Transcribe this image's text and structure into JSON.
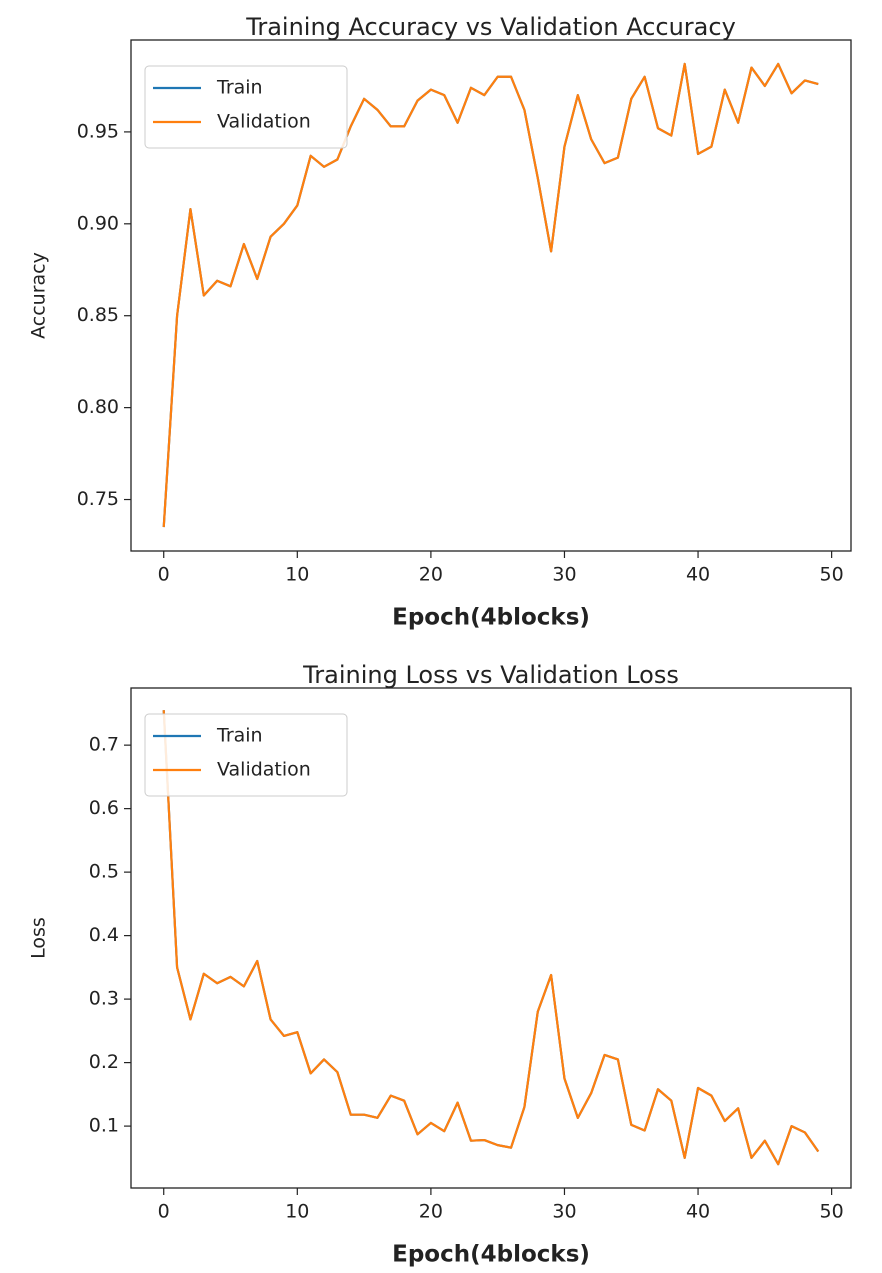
{
  "chart_data": [
    {
      "type": "line",
      "title": "Training Accuracy vs Validation Accuracy",
      "x_label": "Epoch(4blocks)",
      "y_label": "Accuracy",
      "x": [
        0,
        1,
        2,
        3,
        4,
        5,
        6,
        7,
        8,
        9,
        10,
        11,
        12,
        13,
        14,
        15,
        16,
        17,
        18,
        19,
        20,
        21,
        22,
        23,
        24,
        25,
        26,
        27,
        28,
        29,
        30,
        31,
        32,
        33,
        34,
        35,
        36,
        37,
        38,
        39,
        40,
        41,
        42,
        43,
        44,
        45,
        46,
        47,
        48,
        49
      ],
      "series": [
        {
          "name": "Train",
          "color": "#1f77b4",
          "values": [
            0.735,
            0.85,
            0.908,
            0.861,
            0.869,
            0.866,
            0.889,
            0.87,
            0.893,
            0.9,
            0.91,
            0.937,
            0.931,
            0.935,
            0.953,
            0.968,
            0.962,
            0.953,
            0.953,
            0.967,
            0.973,
            0.97,
            0.955,
            0.974,
            0.97,
            0.98,
            0.98,
            0.962,
            0.925,
            0.885,
            0.942,
            0.97,
            0.946,
            0.933,
            0.936,
            0.968,
            0.98,
            0.952,
            0.948,
            0.987,
            0.938,
            0.942,
            0.973,
            0.955,
            0.985,
            0.975,
            0.987,
            0.971,
            0.978,
            0.976
          ]
        },
        {
          "name": "Validation",
          "color": "#ff7f0e",
          "values": [
            0.735,
            0.85,
            0.908,
            0.861,
            0.869,
            0.866,
            0.889,
            0.87,
            0.893,
            0.9,
            0.91,
            0.937,
            0.931,
            0.935,
            0.953,
            0.968,
            0.962,
            0.953,
            0.953,
            0.967,
            0.973,
            0.97,
            0.955,
            0.974,
            0.97,
            0.98,
            0.98,
            0.962,
            0.925,
            0.885,
            0.942,
            0.97,
            0.946,
            0.933,
            0.936,
            0.968,
            0.98,
            0.952,
            0.948,
            0.987,
            0.938,
            0.942,
            0.973,
            0.955,
            0.985,
            0.975,
            0.987,
            0.971,
            0.978,
            0.976
          ]
        }
      ],
      "xlim": [
        -2.45,
        51.45
      ],
      "xticks": [
        0,
        10,
        20,
        30,
        40,
        50
      ],
      "ylim": [
        0.722,
        1.0
      ],
      "yticks": [
        {
          "value": 0.75,
          "label": "0.75"
        },
        {
          "value": 0.8,
          "label": "0.80"
        },
        {
          "value": 0.85,
          "label": "0.85"
        },
        {
          "value": 0.9,
          "label": "0.90"
        },
        {
          "value": 0.95,
          "label": "0.95"
        }
      ],
      "grid": false,
      "legend": "upper left"
    },
    {
      "type": "line",
      "title": "Training Loss vs Validation Loss",
      "x_label": "Epoch(4blocks)",
      "y_label": "Loss",
      "x": [
        0,
        1,
        2,
        3,
        4,
        5,
        6,
        7,
        8,
        9,
        10,
        11,
        12,
        13,
        14,
        15,
        16,
        17,
        18,
        19,
        20,
        21,
        22,
        23,
        24,
        25,
        26,
        27,
        28,
        29,
        30,
        31,
        32,
        33,
        34,
        35,
        36,
        37,
        38,
        39,
        40,
        41,
        42,
        43,
        44,
        45,
        46,
        47,
        48,
        49
      ],
      "series": [
        {
          "name": "Train",
          "color": "#1f77b4",
          "values": [
            0.755,
            0.35,
            0.268,
            0.34,
            0.325,
            0.335,
            0.32,
            0.36,
            0.268,
            0.242,
            0.248,
            0.183,
            0.205,
            0.185,
            0.118,
            0.118,
            0.113,
            0.148,
            0.14,
            0.087,
            0.105,
            0.092,
            0.137,
            0.077,
            0.078,
            0.07,
            0.066,
            0.13,
            0.28,
            0.338,
            0.175,
            0.113,
            0.152,
            0.212,
            0.205,
            0.102,
            0.093,
            0.158,
            0.14,
            0.05,
            0.16,
            0.148,
            0.108,
            0.128,
            0.05,
            0.077,
            0.04,
            0.1,
            0.09,
            0.06
          ]
        },
        {
          "name": "Validation",
          "color": "#ff7f0e",
          "values": [
            0.755,
            0.35,
            0.268,
            0.34,
            0.325,
            0.335,
            0.32,
            0.36,
            0.268,
            0.242,
            0.248,
            0.183,
            0.205,
            0.185,
            0.118,
            0.118,
            0.113,
            0.148,
            0.14,
            0.087,
            0.105,
            0.092,
            0.137,
            0.077,
            0.078,
            0.07,
            0.066,
            0.13,
            0.28,
            0.338,
            0.175,
            0.113,
            0.152,
            0.212,
            0.205,
            0.102,
            0.093,
            0.158,
            0.14,
            0.05,
            0.16,
            0.148,
            0.108,
            0.128,
            0.05,
            0.077,
            0.04,
            0.1,
            0.09,
            0.06
          ]
        }
      ],
      "xlim": [
        -2.45,
        51.45
      ],
      "xticks": [
        0,
        10,
        20,
        30,
        40,
        50
      ],
      "ylim": [
        0.0025,
        0.79
      ],
      "yticks": [
        0.1,
        0.2,
        0.3,
        0.4,
        0.5,
        0.6,
        0.7
      ],
      "grid": false,
      "legend": "upper left"
    }
  ]
}
